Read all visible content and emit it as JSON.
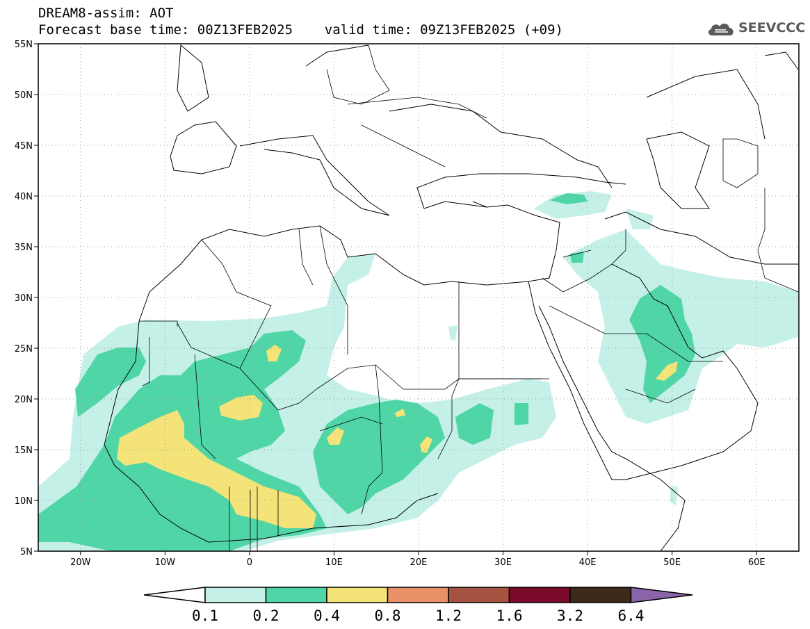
{
  "title": {
    "line1": "DREAM8-assim: AOT",
    "line2": "Forecast base time: 00Z13FEB2025    valid time: 09Z13FEB2025 (+09)"
  },
  "logo": {
    "text": "SEEVCCC",
    "icon": "cloud-logo-icon"
  },
  "map": {
    "lon_range": [
      -25,
      65
    ],
    "lat_range": [
      5,
      55
    ],
    "lon_ticks": [
      {
        "lon": -20,
        "label": "20W"
      },
      {
        "lon": -10,
        "label": "10W"
      },
      {
        "lon": 0,
        "label": "0"
      },
      {
        "lon": 10,
        "label": "10E"
      },
      {
        "lon": 20,
        "label": "20E"
      },
      {
        "lon": 30,
        "label": "30E"
      },
      {
        "lon": 40,
        "label": "40E"
      },
      {
        "lon": 50,
        "label": "50E"
      },
      {
        "lon": 60,
        "label": "60E"
      }
    ],
    "lat_ticks": [
      {
        "lat": 55,
        "label": "55N"
      },
      {
        "lat": 50,
        "label": "50N"
      },
      {
        "lat": 45,
        "label": "45N"
      },
      {
        "lat": 40,
        "label": "40N"
      },
      {
        "lat": 35,
        "label": "35N"
      },
      {
        "lat": 30,
        "label": "30N"
      },
      {
        "lat": 25,
        "label": "25N"
      },
      {
        "lat": 20,
        "label": "20N"
      },
      {
        "lat": 15,
        "label": "15N"
      },
      {
        "lat": 10,
        "label": "10N"
      },
      {
        "lat": 5,
        "label": "5N"
      }
    ],
    "grid": "dotted"
  },
  "colorbar": {
    "labels": [
      "0.1",
      "0.2",
      "0.4",
      "0.8",
      "1.2",
      "1.6",
      "3.2",
      "6.4"
    ],
    "colors": [
      "#c4f0e8",
      "#50d6a6",
      "#f4e378",
      "#ea9169",
      "#a65240",
      "#7a0a2a",
      "#3e2a18"
    ],
    "under_color": "#ffffff",
    "over_color": "#8a64a8"
  }
}
